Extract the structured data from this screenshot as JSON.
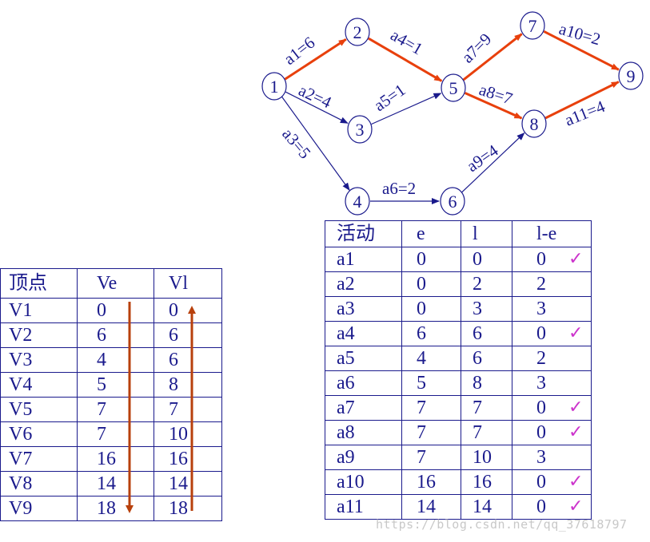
{
  "graph": {
    "nodes": [
      {
        "id": "1",
        "label": "1"
      },
      {
        "id": "2",
        "label": "2"
      },
      {
        "id": "3",
        "label": "3"
      },
      {
        "id": "4",
        "label": "4"
      },
      {
        "id": "5",
        "label": "5"
      },
      {
        "id": "6",
        "label": "6"
      },
      {
        "id": "7",
        "label": "7"
      },
      {
        "id": "8",
        "label": "8"
      },
      {
        "id": "9",
        "label": "9"
      }
    ],
    "edges": [
      {
        "from": "1",
        "to": "2",
        "label": "a1=6",
        "critical": true
      },
      {
        "from": "1",
        "to": "3",
        "label": "a2=4",
        "critical": false
      },
      {
        "from": "1",
        "to": "4",
        "label": "a3=5",
        "critical": false
      },
      {
        "from": "2",
        "to": "5",
        "label": "a4=1",
        "critical": true
      },
      {
        "from": "3",
        "to": "5",
        "label": "a5=1",
        "critical": false
      },
      {
        "from": "4",
        "to": "6",
        "label": "a6=2",
        "critical": false
      },
      {
        "from": "5",
        "to": "7",
        "label": "a7=9",
        "critical": true
      },
      {
        "from": "5",
        "to": "8",
        "label": "a8=7",
        "critical": true
      },
      {
        "from": "6",
        "to": "8",
        "label": "a9=4",
        "critical": false
      },
      {
        "from": "7",
        "to": "9",
        "label": "a10=2",
        "critical": true
      },
      {
        "from": "8",
        "to": "9",
        "label": "a11=4",
        "critical": true
      }
    ],
    "colors": {
      "normal": "#1a1a8c",
      "critical": "#e8400c"
    }
  },
  "vertex_table": {
    "headers": [
      "顶点",
      "Ve",
      "Vl"
    ],
    "rows": [
      [
        "V1",
        "0",
        "0"
      ],
      [
        "V2",
        "6",
        "6"
      ],
      [
        "V3",
        "4",
        "6"
      ],
      [
        "V4",
        "5",
        "8"
      ],
      [
        "V5",
        "7",
        "7"
      ],
      [
        "V6",
        "7",
        "10"
      ],
      [
        "V7",
        "16",
        "16"
      ],
      [
        "V8",
        "14",
        "14"
      ],
      [
        "V9",
        "18",
        "18"
      ]
    ],
    "arrow_color": "#b8400c"
  },
  "activity_table": {
    "headers": [
      "活动",
      "e",
      "l",
      "l-e"
    ],
    "rows": [
      {
        "cells": [
          "a1",
          "0",
          "0",
          "0"
        ],
        "check": true
      },
      {
        "cells": [
          "a2",
          "0",
          "2",
          "2"
        ],
        "check": false
      },
      {
        "cells": [
          "a3",
          "0",
          "3",
          "3"
        ],
        "check": false
      },
      {
        "cells": [
          "a4",
          "6",
          "6",
          "0"
        ],
        "check": true
      },
      {
        "cells": [
          "a5",
          "4",
          "6",
          "2"
        ],
        "check": false
      },
      {
        "cells": [
          "a6",
          "5",
          "8",
          "3"
        ],
        "check": false
      },
      {
        "cells": [
          "a7",
          "7",
          "7",
          "0"
        ],
        "check": true
      },
      {
        "cells": [
          "a8",
          "7",
          "7",
          "0"
        ],
        "check": true
      },
      {
        "cells": [
          "a9",
          "7",
          "10",
          "3"
        ],
        "check": false
      },
      {
        "cells": [
          "a10",
          "16",
          "16",
          "0"
        ],
        "check": true
      },
      {
        "cells": [
          "a11",
          "14",
          "14",
          "0"
        ],
        "check": true
      }
    ],
    "check_symbol": "✓"
  },
  "watermark": "https://blog.csdn.net/qq_37618797"
}
